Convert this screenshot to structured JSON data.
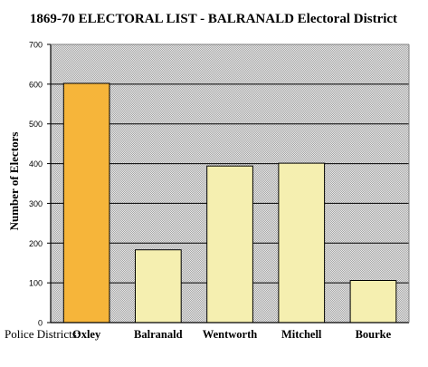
{
  "chart_data": {
    "type": "bar",
    "title": "1869-70 ELECTORAL LIST - BALRANALD Electoral District",
    "xlabel": "Police Districts:",
    "ylabel": "Number of Electors",
    "categories": [
      "Oxley",
      "Balranald",
      "Wentworth",
      "Mitchell",
      "Bourke"
    ],
    "values": [
      602,
      183,
      394,
      401,
      106
    ],
    "ylim": [
      0,
      700
    ],
    "yticks": [
      0,
      100,
      200,
      300,
      400,
      500,
      600,
      700
    ],
    "grid": true,
    "legend": "none",
    "colors": {
      "highlight_bar": "#F6B53A",
      "bar": "#F5EFB0",
      "bar_stroke": "#000000",
      "plot_bg": "#C6C6C6",
      "gridline": "#000000"
    },
    "highlight_index": 0
  }
}
